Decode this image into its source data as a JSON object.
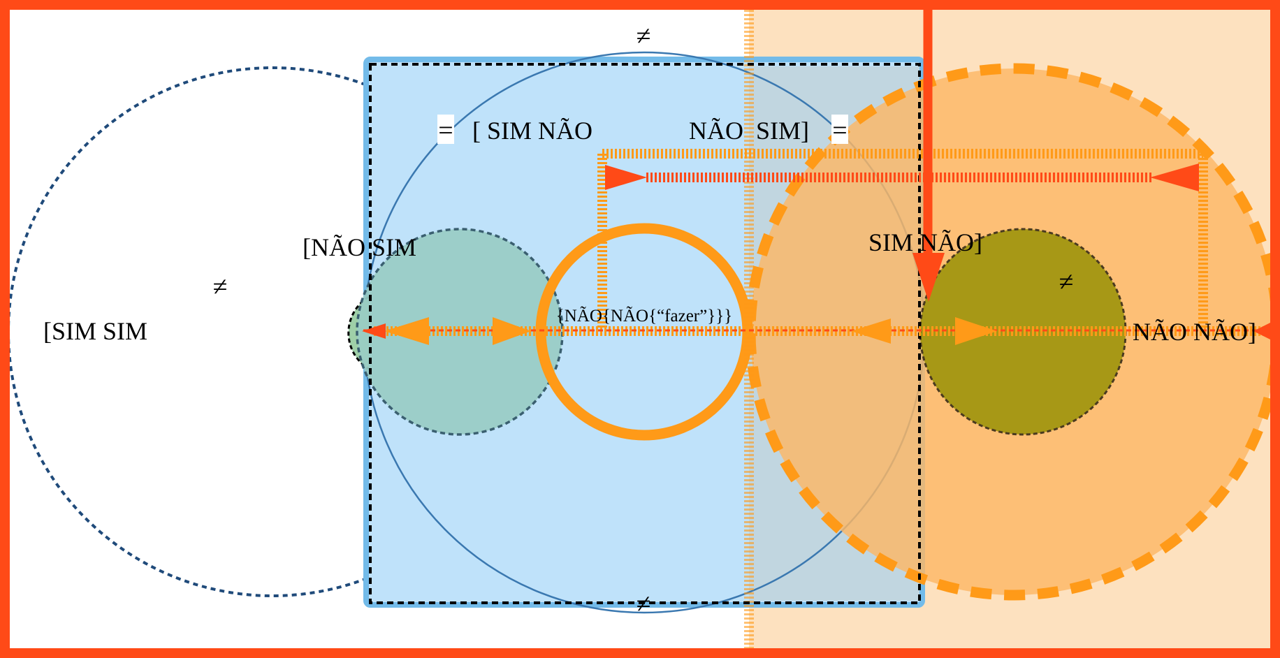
{
  "colors": {
    "frame": "#ff4a17",
    "orange": "#ff9a18",
    "light_orange": "#fde1bf",
    "orange_fill": "#fcb765",
    "blue_fill": "#bfe2fa",
    "blue_border": "#73bbe9",
    "dark_blue": "#1f4a7a",
    "teal": "#99ccc4",
    "olive": "#a79816"
  },
  "labels": {
    "sim_sim": "[SIM SIM",
    "nao_sim_left": "[NÃO SIM",
    "sim_nao_open": "[ SIM NÃO",
    "nao_sim_close": "NÃO  SIM]",
    "sim_nao_close": "SIM NÃO]",
    "nao_nao_close": "NÃO NÃO]",
    "center_expression": "{NÃO{NÃO{“fazer”}}}"
  },
  "symbols": {
    "not_equal": "≠",
    "equal": "="
  }
}
